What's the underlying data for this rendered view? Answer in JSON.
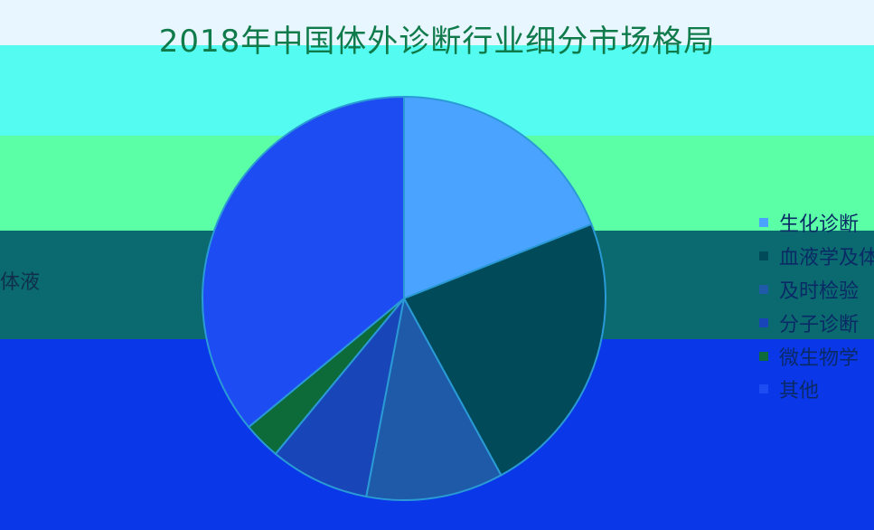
{
  "chart_data": {
    "type": "pie",
    "title": "2018年中国体外诊断行业细分市场格局",
    "side_label": "体液",
    "series": [
      {
        "name": "生化诊断",
        "value": 19,
        "color": "#4aa3ff"
      },
      {
        "name": "血液学及体液",
        "value": 23,
        "color": "#004a5a"
      },
      {
        "name": "及时检验",
        "value": 11,
        "color": "#1e5aa8"
      },
      {
        "name": "分子诊断",
        "value": 8,
        "color": "#1846b8"
      },
      {
        "name": "微生物学",
        "value": 3,
        "color": "#0d6b3a"
      },
      {
        "name": "其他",
        "value": 36,
        "color": "#1d4cf2"
      }
    ]
  },
  "colors": {
    "background": "#0a2fd0",
    "title": "#0f7a4a",
    "slice_border": "#2a9ad6"
  }
}
